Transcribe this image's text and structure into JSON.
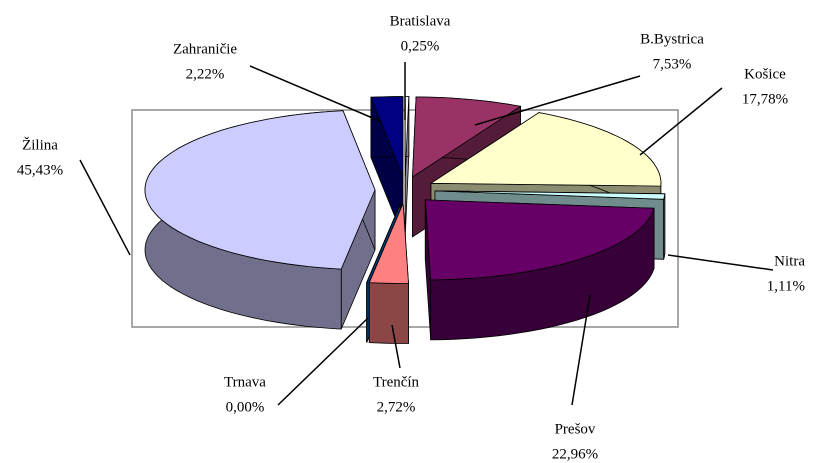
{
  "chart_data": {
    "type": "pie",
    "categories": [
      "Bratislava",
      "B.Bystrica",
      "Košice",
      "Nitra",
      "Prešov",
      "Trenčín",
      "Trnava",
      "Žilina",
      "Zahraničie"
    ],
    "values": [
      0.25,
      7.53,
      17.78,
      1.11,
      22.96,
      2.72,
      0.0,
      45.43,
      2.22
    ],
    "value_labels": [
      "0,25%",
      "7,53%",
      "17,78%",
      "1,11%",
      "22,96%",
      "2,72%",
      "0,00%",
      "45,43%",
      "2,22%"
    ],
    "colors": [
      "#ffffff",
      "#993366",
      "#ffffcc",
      "#ccffff",
      "#660066",
      "#ff8080",
      "#0066cc",
      "#ccccff",
      "#000080"
    ],
    "exploded": true,
    "three_d": true
  }
}
